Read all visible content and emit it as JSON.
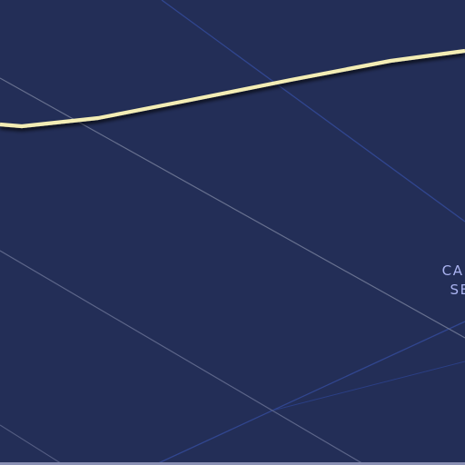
{
  "map": {
    "labels": [
      {
        "line1": "CADEM",
        "line2": "SECT"
      }
    ],
    "colors": {
      "background": "#232e57",
      "major_road": "#f3edb5",
      "road_casing": "#141a33",
      "minor_road": "#6a7396",
      "transit_line": "#334a9a",
      "label": "#aab3f0"
    }
  }
}
